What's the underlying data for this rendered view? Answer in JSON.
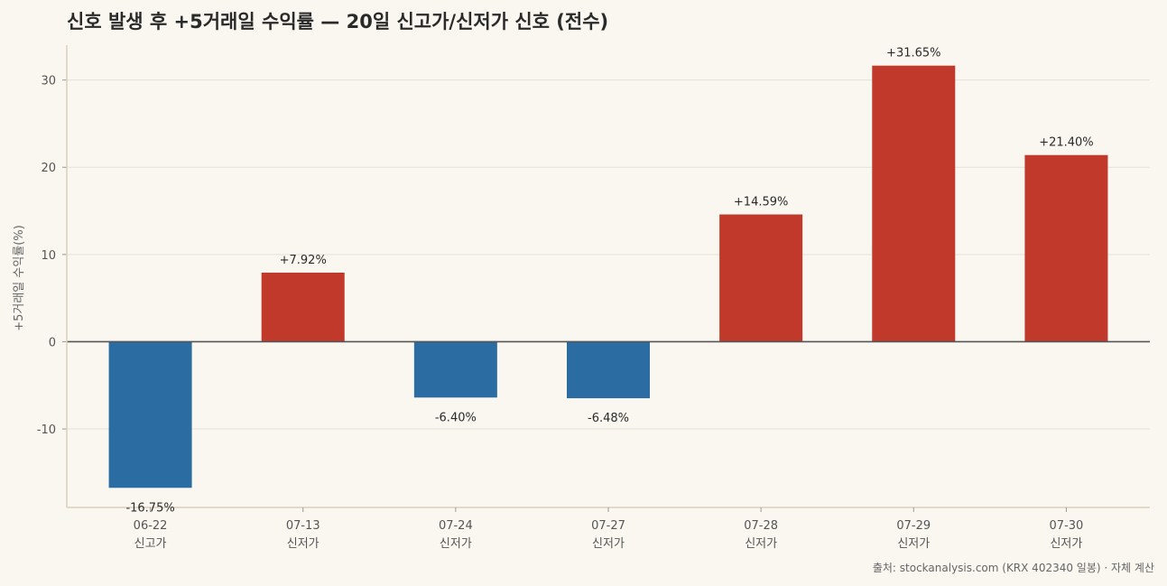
{
  "chart_data": {
    "type": "bar",
    "title": "신호 발생 후 +5거래일 수익률 — 20일 신고가/신저가 신호 (전수)",
    "ylabel": "+5거래일 수익률(%)",
    "xlabel": "",
    "ylim": [
      -19,
      34
    ],
    "yticks": [
      -10,
      0,
      10,
      20,
      30
    ],
    "grid": true,
    "categories": [
      {
        "date": "06-22",
        "signal": "신고가"
      },
      {
        "date": "07-13",
        "signal": "신저가"
      },
      {
        "date": "07-24",
        "signal": "신저가"
      },
      {
        "date": "07-27",
        "signal": "신저가"
      },
      {
        "date": "07-28",
        "signal": "신저가"
      },
      {
        "date": "07-29",
        "signal": "신저가"
      },
      {
        "date": "07-30",
        "signal": "신저가"
      }
    ],
    "values": [
      -16.75,
      7.92,
      -6.4,
      -6.48,
      14.59,
      31.65,
      21.4
    ],
    "data_labels": [
      "-16.75%",
      "+7.92%",
      "-6.40%",
      "-6.48%",
      "+14.59%",
      "+31.65%",
      "+21.40%"
    ],
    "colors": {
      "positive": "#c0392b",
      "negative": "#2b6ca3",
      "zero_line": "#555555",
      "grid": "#e6e1d8",
      "axis": "#d9cfbe"
    }
  },
  "source_note": "출처: stockanalysis.com (KRX 402340 일봉) · 자체 계산"
}
